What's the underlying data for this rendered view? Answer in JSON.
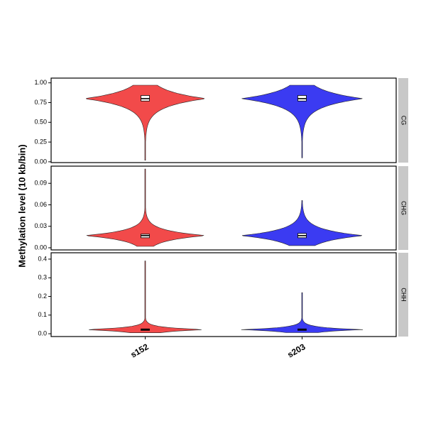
{
  "chart_data": {
    "type": "violin",
    "ylabel": "Methylation level (10 kb/bin)",
    "categories": [
      "s152",
      "s203"
    ],
    "colors": [
      "#f24a4a",
      "#3b3bf2"
    ],
    "facets": [
      {
        "label": "CG",
        "ylim": [
          -0.01,
          1.06
        ],
        "yticks": [
          {
            "value": 0,
            "label": "0.00"
          },
          {
            "value": 0.25,
            "label": "0.25"
          },
          {
            "value": 0.5,
            "label": "0.50"
          },
          {
            "value": 0.75,
            "label": "0.75"
          },
          {
            "value": 1,
            "label": "1.00"
          }
        ],
        "violins": [
          {
            "min": 0.02,
            "q1": 0.77,
            "median": 0.8,
            "q3": 0.84,
            "max": 0.97
          },
          {
            "min": 0.05,
            "q1": 0.77,
            "median": 0.8,
            "q3": 0.84,
            "max": 0.97
          }
        ]
      },
      {
        "label": "CHG",
        "ylim": [
          -0.003,
          0.114
        ],
        "yticks": [
          {
            "value": 0,
            "label": "0.00"
          },
          {
            "value": 0.03,
            "label": "0.03"
          },
          {
            "value": 0.06,
            "label": "0.06"
          },
          {
            "value": 0.09,
            "label": "0.09"
          }
        ],
        "violins": [
          {
            "min": 0.002,
            "q1": 0.014,
            "median": 0.017,
            "q3": 0.019,
            "max": 0.11
          },
          {
            "min": 0.003,
            "q1": 0.014,
            "median": 0.017,
            "q3": 0.02,
            "max": 0.066
          }
        ]
      },
      {
        "label": "CHH",
        "ylim": [
          -0.015,
          0.434
        ],
        "yticks": [
          {
            "value": 0,
            "label": "0.0"
          },
          0.1,
          0.2,
          0.3,
          0.4
        ],
        "violins": [
          {
            "min": 0.005,
            "q1": 0.018,
            "median": 0.022,
            "q3": 0.026,
            "max": 0.39
          },
          {
            "min": 0.006,
            "q1": 0.018,
            "median": 0.022,
            "q3": 0.026,
            "max": 0.22
          }
        ]
      }
    ]
  }
}
